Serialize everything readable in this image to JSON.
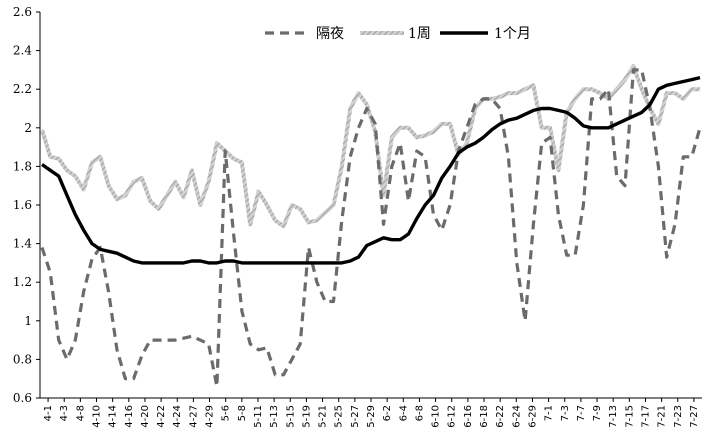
{
  "chart_data": {
    "type": "line",
    "title": "",
    "xlabel": "",
    "ylabel": "",
    "ylim": [
      0.6,
      2.6
    ],
    "yticks": [
      0.6,
      0.8,
      1,
      1.2,
      1.4,
      1.6,
      1.8,
      2,
      2.2,
      2.4,
      2.6
    ],
    "ytick_labels": [
      "0.6",
      "0.8",
      "1",
      "1.2",
      "1.4",
      "1.6",
      "1.8",
      "2",
      "2.2",
      "2.4",
      "2.6"
    ],
    "grid": false,
    "legend_position": "top",
    "x_tick_labels": [
      "4-1",
      "4-3",
      "4-8",
      "4-10",
      "4-14",
      "4-16",
      "4-20",
      "4-22",
      "4-24",
      "4-27",
      "4-29",
      "5-6",
      "5-8",
      "5-11",
      "5-13",
      "5-15",
      "5-19",
      "5-21",
      "5-25",
      "5-27",
      "5-29",
      "6-2",
      "6-4",
      "6-8",
      "6-10",
      "6-12",
      "6-16",
      "6-18",
      "6-22",
      "6-24",
      "6-29",
      "7-1",
      "7-3",
      "7-7",
      "7-9",
      "7-13",
      "7-15",
      "7-17",
      "7-21",
      "7-23",
      "7-27"
    ],
    "series": [
      {
        "name": "隔夜",
        "color": "#6b6b6b",
        "style": "dashed",
        "values": [
          1.38,
          1.25,
          0.9,
          0.8,
          0.9,
          1.15,
          1.32,
          1.38,
          1.15,
          0.85,
          0.7,
          0.7,
          0.82,
          0.9,
          0.9,
          0.9,
          0.9,
          0.91,
          0.92,
          0.9,
          0.88,
          0.66,
          1.88,
          1.45,
          1.05,
          0.88,
          0.85,
          0.86,
          0.72,
          0.72,
          0.8,
          0.88,
          1.38,
          1.2,
          1.1,
          1.1,
          1.52,
          1.85,
          2.0,
          2.1,
          2.02,
          1.5,
          1.8,
          1.92,
          1.62,
          1.88,
          1.85,
          1.55,
          1.47,
          1.6,
          1.88,
          2.0,
          2.12,
          2.15,
          2.15,
          2.1,
          1.85,
          1.3,
          1.0,
          1.5,
          1.92,
          1.95,
          1.55,
          1.34,
          1.34,
          1.6,
          2.15,
          2.15,
          2.2,
          1.75,
          1.7,
          2.3,
          2.3,
          2.1,
          1.8,
          1.33,
          1.5,
          1.85,
          1.85,
          2.0
        ]
      },
      {
        "name": "1周",
        "color": "#a8a8a8",
        "style": "crosshatch",
        "values": [
          1.99,
          1.85,
          1.84,
          1.78,
          1.75,
          1.68,
          1.82,
          1.85,
          1.7,
          1.63,
          1.65,
          1.72,
          1.74,
          1.62,
          1.58,
          1.65,
          1.72,
          1.64,
          1.78,
          1.6,
          1.72,
          1.92,
          1.88,
          1.84,
          1.82,
          1.5,
          1.67,
          1.6,
          1.52,
          1.49,
          1.6,
          1.58,
          1.51,
          1.52,
          1.56,
          1.6,
          1.8,
          2.1,
          2.18,
          2.12,
          1.98,
          1.65,
          1.95,
          2.0,
          2.0,
          1.95,
          1.96,
          1.98,
          2.02,
          2.02,
          1.86,
          1.92,
          2.1,
          2.15,
          2.15,
          2.16,
          2.18,
          2.18,
          2.2,
          2.22,
          2.0,
          2.0,
          1.78,
          2.08,
          2.15,
          2.2,
          2.2,
          2.18,
          2.15,
          2.2,
          2.25,
          2.32,
          2.2,
          2.1,
          2.02,
          2.18,
          2.18,
          2.15,
          2.2,
          2.2
        ]
      },
      {
        "name": "1个月",
        "color": "#000000",
        "style": "solid",
        "values": [
          1.81,
          1.78,
          1.75,
          1.65,
          1.55,
          1.47,
          1.4,
          1.37,
          1.36,
          1.35,
          1.33,
          1.31,
          1.3,
          1.3,
          1.3,
          1.3,
          1.3,
          1.3,
          1.31,
          1.31,
          1.3,
          1.3,
          1.31,
          1.31,
          1.3,
          1.3,
          1.3,
          1.3,
          1.3,
          1.3,
          1.3,
          1.3,
          1.3,
          1.3,
          1.3,
          1.3,
          1.3,
          1.31,
          1.33,
          1.39,
          1.41,
          1.43,
          1.42,
          1.42,
          1.45,
          1.53,
          1.6,
          1.65,
          1.74,
          1.8,
          1.87,
          1.9,
          1.92,
          1.95,
          1.99,
          2.02,
          2.04,
          2.05,
          2.07,
          2.09,
          2.1,
          2.1,
          2.09,
          2.08,
          2.05,
          2.01,
          2.0,
          2.0,
          2.0,
          2.02,
          2.04,
          2.06,
          2.08,
          2.12,
          2.2,
          2.22,
          2.23,
          2.24,
          2.25,
          2.26
        ]
      }
    ]
  }
}
